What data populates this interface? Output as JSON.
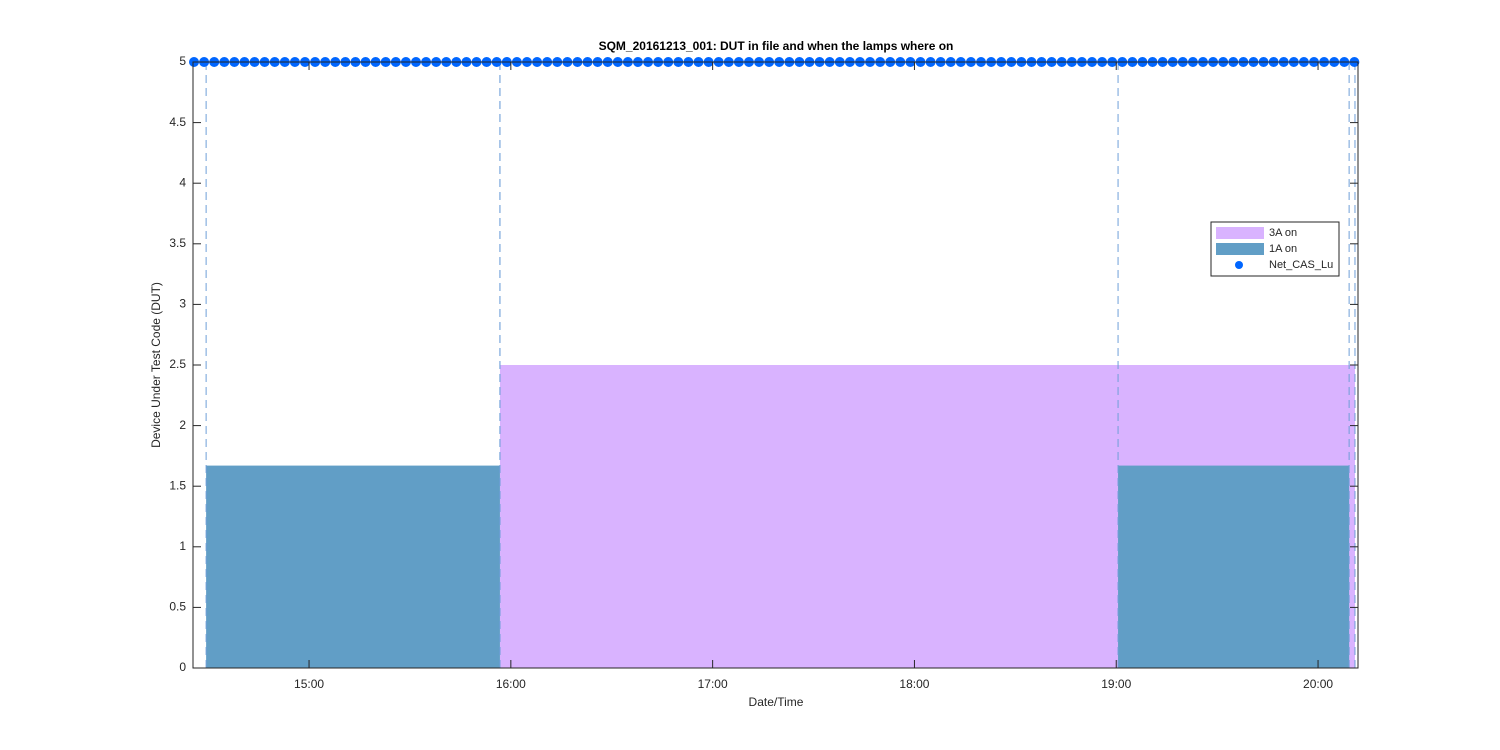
{
  "chart_data": {
    "type": "area",
    "title": "SQM_20161213_001: DUT in file and when the lamps where on",
    "xlabel": "Date/Time",
    "ylabel": "Device Under Test Code (DUT)",
    "xlim": [
      14.425,
      20.198
    ],
    "xticks": [
      {
        "value": 15,
        "label": "15:00"
      },
      {
        "value": 16,
        "label": "16:00"
      },
      {
        "value": 17,
        "label": "17:00"
      },
      {
        "value": 18,
        "label": "18:00"
      },
      {
        "value": 19,
        "label": "19:00"
      },
      {
        "value": 20,
        "label": "20:00"
      }
    ],
    "ylim": [
      0,
      5
    ],
    "yticks": [
      0,
      0.5,
      1,
      1.5,
      2,
      2.5,
      3,
      3.5,
      4,
      4.5,
      5
    ],
    "grid": false,
    "legend": "east",
    "series": [
      {
        "name": "3A on",
        "type": "area",
        "color": "#d9b3ff",
        "spans": [
          [
            15.946,
            20.183
          ]
        ],
        "values": [
          2.5
        ]
      },
      {
        "name": "1A on",
        "type": "area",
        "color": "#619ec6",
        "spans": [
          [
            14.49,
            15.946
          ],
          [
            19.009,
            20.154
          ]
        ],
        "values": [
          1.67,
          1.67
        ]
      },
      {
        "name": "Net_CAS_Lu",
        "type": "scatter",
        "color": "#0066ff",
        "x": [
          14.43,
          14.48,
          14.53,
          14.58,
          14.63,
          14.68,
          14.73,
          14.78,
          14.83,
          14.88,
          14.93,
          14.98,
          15.03,
          15.08,
          15.13,
          15.18,
          15.23,
          15.28,
          15.33,
          15.38,
          15.43,
          15.48,
          15.53,
          15.58,
          15.63,
          15.68,
          15.73,
          15.78,
          15.83,
          15.88,
          15.93,
          15.98,
          16.03,
          16.08,
          16.13,
          16.18,
          16.23,
          16.28,
          16.33,
          16.38,
          16.43,
          16.48,
          16.53,
          16.58,
          16.63,
          16.68,
          16.73,
          16.78,
          16.83,
          16.88,
          16.93,
          16.98,
          17.03,
          17.08,
          17.13,
          17.18,
          17.23,
          17.28,
          17.33,
          17.38,
          17.43,
          17.48,
          17.53,
          17.58,
          17.63,
          17.68,
          17.73,
          17.78,
          17.83,
          17.88,
          17.93,
          17.98,
          18.03,
          18.08,
          18.13,
          18.18,
          18.23,
          18.28,
          18.33,
          18.38,
          18.43,
          18.48,
          18.53,
          18.58,
          18.63,
          18.68,
          18.73,
          18.78,
          18.83,
          18.88,
          18.93,
          18.98,
          19.03,
          19.08,
          19.13,
          19.18,
          19.23,
          19.28,
          19.33,
          19.38,
          19.43,
          19.48,
          19.53,
          19.58,
          19.63,
          19.68,
          19.73,
          19.78,
          19.83,
          19.88,
          19.93,
          19.98,
          20.03,
          20.08,
          20.13,
          20.18
        ],
        "values": [
          5,
          5,
          5,
          5,
          5,
          5,
          5,
          5,
          5,
          5,
          5,
          5,
          5,
          5,
          5,
          5,
          5,
          5,
          5,
          5,
          5,
          5,
          5,
          5,
          5,
          5,
          5,
          5,
          5,
          5,
          5,
          5,
          5,
          5,
          5,
          5,
          5,
          5,
          5,
          5,
          5,
          5,
          5,
          5,
          5,
          5,
          5,
          5,
          5,
          5,
          5,
          5,
          5,
          5,
          5,
          5,
          5,
          5,
          5,
          5,
          5,
          5,
          5,
          5,
          5,
          5,
          5,
          5,
          5,
          5,
          5,
          5,
          5,
          5,
          5,
          5,
          5,
          5,
          5,
          5,
          5,
          5,
          5,
          5,
          5,
          5,
          5,
          5,
          5,
          5,
          5,
          5,
          5,
          5,
          5,
          5,
          5,
          5,
          5,
          5,
          5,
          5,
          5,
          5,
          5,
          5,
          5,
          5,
          5,
          5,
          5,
          5,
          5,
          5,
          5,
          5
        ]
      }
    ]
  }
}
